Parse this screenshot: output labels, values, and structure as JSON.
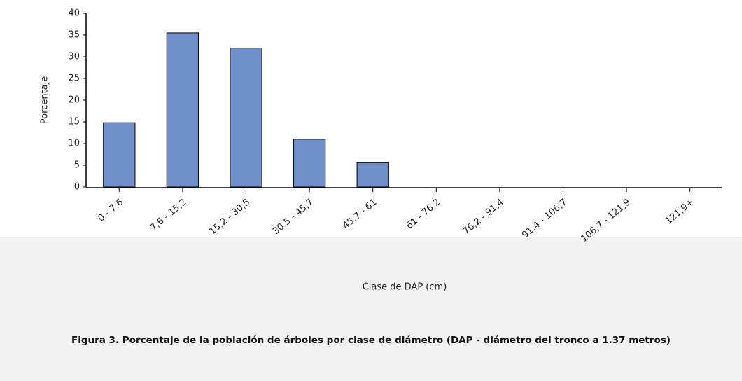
{
  "chart_data": {
    "type": "bar",
    "caption": "Figura 3. Porcentaje de la población de árboles por clase de diámetro (DAP - diámetro del tronco a 1.37 metros)",
    "x_label": "Clase de DAP (cm)",
    "y_label": "Porcentaje",
    "categories": [
      "0 - 7,6",
      "7,6 - 15,2",
      "15,2 - 30,5",
      "30,5 - 45,7",
      "45,7 - 61",
      "61 - 76,2",
      "76,2 - 91,4",
      "91,4 - 106,7",
      "106,7 - 121,9",
      "121,9+"
    ],
    "values": [
      14.8,
      35.5,
      32,
      11,
      5.6,
      0,
      0,
      0,
      0,
      0
    ],
    "color": "#6f8fcb",
    "ylim": [
      0,
      40
    ],
    "yticks": [
      0,
      5,
      10,
      15,
      20,
      25,
      30,
      35,
      40
    ],
    "grid": false
  }
}
